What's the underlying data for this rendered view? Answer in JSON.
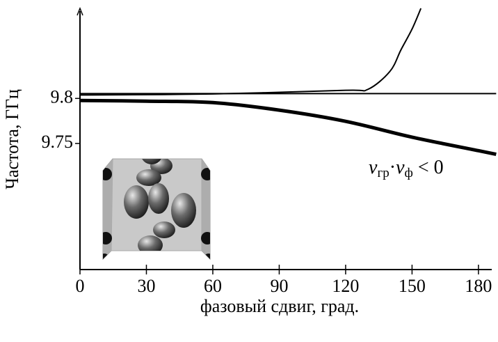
{
  "chart_data": {
    "type": "line",
    "y_label": "Частота, ГГц",
    "x_label": "фазовый сдвиг, град.",
    "annotation": [
      "v",
      "гр",
      "·",
      "v",
      "ф",
      " < 0"
    ],
    "xlim": [
      0,
      186
    ],
    "xticks": [
      0,
      30,
      60,
      90,
      120,
      150,
      180
    ],
    "ylim": [
      9.61,
      9.9
    ],
    "yticks": [
      9.75,
      9.8
    ],
    "series": [
      {
        "color": "#000000",
        "line_width": 2,
        "x": [
          0,
          60,
          120,
          130,
          140,
          145,
          150,
          154
        ],
        "values": [
          9.8038,
          9.805,
          9.809,
          9.81,
          9.83,
          9.854,
          9.877,
          9.9
        ]
      },
      {
        "color": "#000000",
        "line_width": 2,
        "x": [
          0,
          188
        ],
        "values": [
          9.8054,
          9.8054
        ]
      },
      {
        "color": "#000000",
        "line_width": 5,
        "x": [
          0,
          30,
          60,
          90,
          120,
          150,
          180,
          188
        ],
        "values": [
          9.7977,
          9.797,
          9.7954,
          9.787,
          9.7746,
          9.757,
          9.742,
          9.738
        ]
      }
    ]
  }
}
